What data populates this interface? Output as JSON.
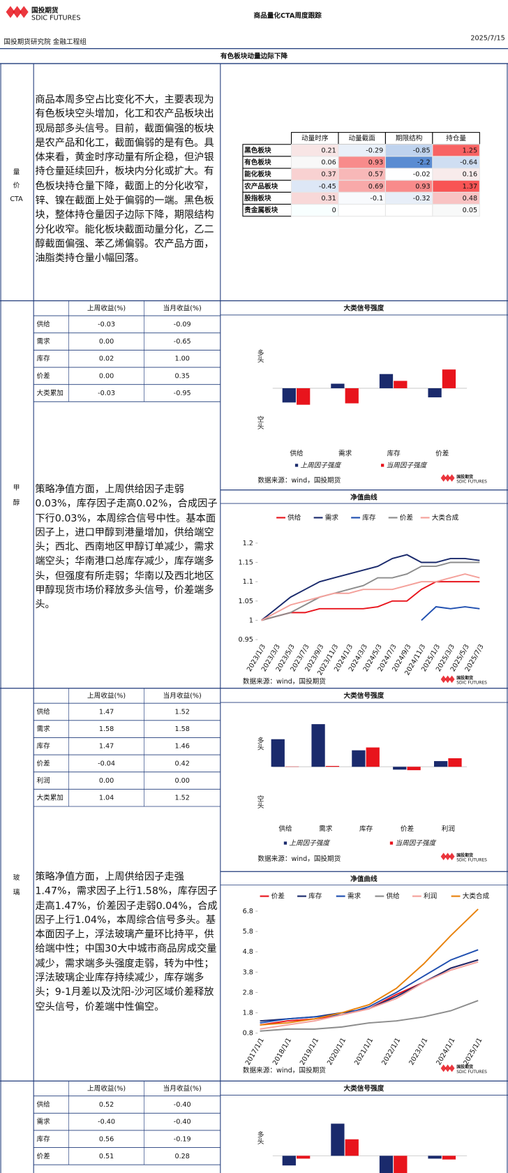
{
  "header": {
    "logo_cn": "国投期货",
    "logo_en": "SDIC FUTURES",
    "title": "商品量化CTA周度跟踪",
    "org": "国投期货研究院 金融工程组",
    "date": "2025/7/15",
    "headline": "有色板块动量边际下降"
  },
  "overview": {
    "label": [
      "量",
      "价",
      "CTA"
    ],
    "text": "商品本周多空占比变化不大，主要表现为有色板块空头增加，化工和农产品板块出现局部多头信号。目前，截面偏强的板块是农产品和化工，截面偏弱的是有色。具体来看，黄金时序动量有所企稳，但沪银持仓量延续回升，板块内分化或扩大。有色板块持仓量下降，截面上的分化收窄，锌、镍在截面上处于偏弱的一端。黑色板块，整体持仓量因子边际下降，期限结构分化收窄。能化板块截面动量分化，乙二醇截面偏强、苯乙烯偏弱。农产品方面，油脂类持仓量小幅回落。",
    "heatmap": {
      "columns": [
        "动量时序",
        "动量截面",
        "期限结构",
        "持仓量"
      ],
      "rows": [
        "黑色板块",
        "有色板块",
        "能化板块",
        "农产品板块",
        "股指板块",
        "贵金属板块"
      ],
      "values": [
        [
          0.21,
          -0.29,
          -0.85,
          1.25
        ],
        [
          0.06,
          0.93,
          -2.2,
          -0.64
        ],
        [
          0.37,
          0.57,
          -0.02,
          0.16
        ],
        [
          -0.45,
          0.69,
          0.93,
          1.37
        ],
        [
          0.31,
          -0.1,
          -0.32,
          0.48
        ],
        [
          0,
          null,
          null,
          0.05
        ]
      ]
    }
  },
  "sections": [
    {
      "label": [
        "甲",
        "醇"
      ],
      "table": {
        "headers": [
          "上周收益(%)",
          "当月收益(%)"
        ],
        "rows": [
          [
            "供给",
            "-0.03",
            "-0.09"
          ],
          [
            "需求",
            "0.00",
            "-0.65"
          ],
          [
            "库存",
            "0.02",
            "1.00"
          ],
          [
            "价差",
            "0.00",
            "0.35"
          ],
          [
            "大类累加",
            "-0.03",
            "-0.95"
          ]
        ]
      },
      "text": "策略净值方面，上周供给因子走弱0.03%，库存因子走高0.02%，合成因子下行0.03%，本周综合信号中性。基本面因子上，进口甲醇到港量增加，供给端空头；西北、西南地区甲醇订单减少，需求端空头；华南港口总库存减少，库存端多头，但强度有所走弱；华南以及西北地区甲醇现货市场价释放多头信号，价差端多头。",
      "signal_chart": {
        "type": "bar",
        "title": "大类信号强度",
        "long_label": "多头",
        "short_label": "空头",
        "categories": [
          "供给",
          "需求",
          "库存",
          "价差"
        ],
        "series": [
          {
            "name": "上周因子强度",
            "color": "#1a2a6c",
            "values": [
              -0.5,
              0.16,
              0.5,
              -0.32
            ]
          },
          {
            "name": "当周因子强度",
            "color": "#e8141c",
            "values": [
              -0.58,
              -0.53,
              0.26,
              0.66
            ]
          }
        ],
        "source": "数据来源：wind，国投期货"
      },
      "nav_chart": {
        "type": "line",
        "title": "净值曲线",
        "x": [
          "2023/1/3",
          "2023/3/3",
          "2023/5/3",
          "2023/7/3",
          "2023/9/3",
          "2023/11/3",
          "2024/1/3",
          "2024/3/3",
          "2024/5/3",
          "2024/7/3",
          "2024/9/3",
          "2024/11/3",
          "2025/1/3",
          "2025/3/3",
          "2025/5/3",
          "2025/7/3"
        ],
        "series": [
          {
            "name": "供给",
            "color": "#e8141c",
            "values": [
              1.0,
              1.01,
              1.02,
              1.02,
              1.03,
              1.03,
              1.03,
              1.03,
              1.035,
              1.05,
              1.05,
              1.08,
              1.1,
              1.1,
              1.1,
              1.1
            ]
          },
          {
            "name": "需求",
            "color": "#1a2a6c",
            "values": [
              1.0,
              1.03,
              1.06,
              1.08,
              1.1,
              1.11,
              1.12,
              1.13,
              1.14,
              1.16,
              1.17,
              1.15,
              1.15,
              1.16,
              1.16,
              1.155
            ]
          },
          {
            "name": "库存",
            "color": "#1f4fb0",
            "values": [
              null,
              null,
              null,
              null,
              null,
              null,
              null,
              null,
              null,
              null,
              null,
              1.0,
              1.035,
              1.03,
              1.035,
              1.03
            ]
          },
          {
            "name": "价差",
            "color": "#8c8c8c",
            "values": [
              1.0,
              1.01,
              1.02,
              1.04,
              1.06,
              1.07,
              1.08,
              1.09,
              1.11,
              1.11,
              1.12,
              1.14,
              1.14,
              1.15,
              1.15,
              1.15
            ]
          },
          {
            "name": "大类合成",
            "color": "#f4a09a",
            "values": [
              1.0,
              1.02,
              1.04,
              1.05,
              1.06,
              1.07,
              1.07,
              1.08,
              1.08,
              1.08,
              1.09,
              1.1,
              1.1,
              1.11,
              1.12,
              1.11
            ]
          }
        ],
        "ylim": [
          0.95,
          1.2
        ],
        "yticks": [
          0.95,
          1,
          1.05,
          1.1,
          1.15,
          1.2
        ],
        "source": "数据来源：wind，国投期货"
      }
    },
    {
      "label": [
        "玻",
        "璃"
      ],
      "table": {
        "headers": [
          "上周收益(%)",
          "当月收益(%)"
        ],
        "rows": [
          [
            "供给",
            "1.47",
            "1.52"
          ],
          [
            "需求",
            "1.58",
            "1.58"
          ],
          [
            "库存",
            "1.47",
            "1.46"
          ],
          [
            "价差",
            "-0.04",
            "0.42"
          ],
          [
            "利润",
            "0.00",
            "0.00"
          ],
          [
            "大类累加",
            "1.04",
            "1.52"
          ]
        ]
      },
      "text": "策略净值方面，上周供给因子走强1.47%，需求因子上行1.58%，库存因子走高1.47%，价差因子走弱0.04%，合成因子上行1.04%，本周综合信号多头。基本面因子上，浮法玻璃产量环比持平，供给端中性；中国30大中城市商品房成交量减少，需求端多头强度走弱，转为中性；浮法玻璃企业库存持续减少，库存端多头；9-1月差以及沈阳-沙河区域价差释放空头信号，价差端中性偏空。",
      "signal_chart": {
        "type": "bar",
        "title": "大类信号强度",
        "long_label": "多头",
        "short_label": "空头",
        "categories": [
          "供给",
          "需求",
          "库存",
          "价差",
          "利润"
        ],
        "series": [
          {
            "name": "上周因子强度",
            "color": "#1a2a6c",
            "values": [
              0.97,
              1.5,
              0.58,
              -0.1,
              0.2
            ]
          },
          {
            "name": "当周因子强度",
            "color": "#e8141c",
            "values": [
              0.01,
              0.03,
              0.68,
              -0.12,
              0.3
            ]
          }
        ],
        "source": "数据来源：wind，国投期货"
      },
      "nav_chart": {
        "type": "line",
        "title": "净值曲线",
        "x": [
          "2017/1/1",
          "2018/1/1",
          "2019/1/1",
          "2020/1/1",
          "2021/1/1",
          "2022/1/1",
          "2023/1/1",
          "2024/1/1",
          "2025/1/1"
        ],
        "series": [
          {
            "name": "价差",
            "color": "#e8141c",
            "values": [
              1.2,
              1.4,
              1.5,
              1.7,
              2.0,
              2.7,
              3.3,
              4.0,
              4.4
            ]
          },
          {
            "name": "库存",
            "color": "#1a2a6c",
            "values": [
              1.4,
              1.5,
              1.6,
              1.8,
              2.0,
              2.6,
              3.3,
              4.0,
              4.4
            ]
          },
          {
            "name": "需求",
            "color": "#1f4fb0",
            "values": [
              1.3,
              1.5,
              1.6,
              1.7,
              2.1,
              2.8,
              3.6,
              4.4,
              4.9
            ]
          },
          {
            "name": "供给",
            "color": "#8c8c8c",
            "values": [
              0.9,
              1.0,
              1.0,
              1.1,
              1.3,
              1.4,
              1.6,
              1.9,
              2.4
            ]
          },
          {
            "name": "利润",
            "color": "#f4a09a",
            "values": [
              1.0,
              1.2,
              1.4,
              1.7,
              2.0,
              2.5,
              3.3,
              3.9,
              4.3
            ]
          },
          {
            "name": "大类合成",
            "color": "#e8820c",
            "values": [
              1.2,
              1.3,
              1.5,
              1.8,
              2.2,
              3.0,
              4.2,
              5.6,
              6.9
            ]
          }
        ],
        "ylim": [
          0.8,
          6.8
        ],
        "yticks": [
          0.8,
          1.8,
          2.8,
          3.8,
          4.8,
          5.8,
          6.8
        ],
        "source": "数据来源：wind，国投期货"
      }
    },
    {
      "table": {
        "headers": [
          "上周收益(%)",
          "当月收益(%)"
        ],
        "rows": [
          [
            "供给",
            "0.52",
            "-0.40"
          ],
          [
            "需求",
            "-0.40",
            "-0.40"
          ],
          [
            "库存",
            "0.56",
            "-0.19"
          ],
          [
            "价差",
            "0.51",
            "0.28"
          ]
        ]
      },
      "signal_chart": {
        "type": "bar",
        "title": "大类信号强度",
        "long_label": "多头",
        "series": [
          {
            "color": "#1a2a6c",
            "values": [
              -0.34,
              1.13,
              -0.7,
              -0.1
            ]
          },
          {
            "color": "#e8141c",
            "values": [
              -0.1,
              0.58,
              -0.7,
              -0.13
            ]
          }
        ]
      }
    }
  ]
}
